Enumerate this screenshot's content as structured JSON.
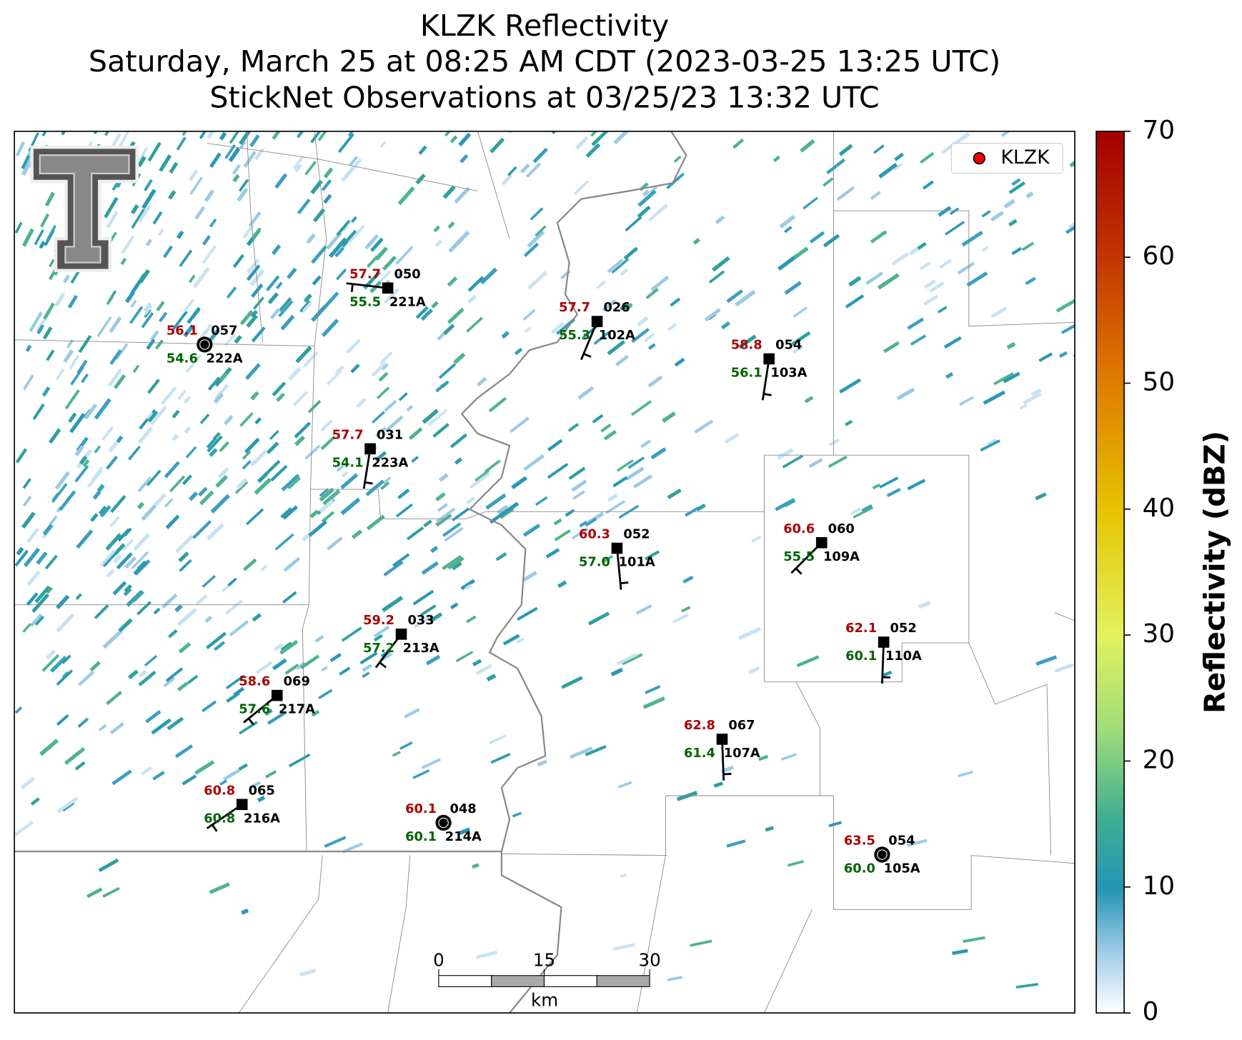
{
  "title": [
    "KLZK Reflectivity",
    "Saturday, March 25 at 08:25 AM CDT (2023-03-25 13:25 UTC)",
    "StickNet Observations at 03/25/23 13:32 UTC"
  ],
  "legend": "KLZK",
  "colorbar": {
    "label": "Reflectivity (dBZ)",
    "ticks": [
      0,
      10,
      20,
      30,
      40,
      50,
      60,
      70
    ],
    "lim": [
      0,
      70
    ]
  },
  "scale_bar": {
    "ticks": [
      0,
      15,
      30
    ],
    "unit": "km"
  },
  "stations": [
    {
      "id": "221A",
      "temperature": "57.7",
      "dewpoint": "55.5",
      "code": "050"
    },
    {
      "id": "222A",
      "temperature": "56.1",
      "dewpoint": "54.6",
      "code": "057"
    },
    {
      "id": "102A",
      "temperature": "57.7",
      "dewpoint": "55.3",
      "code": "026"
    },
    {
      "id": "103A",
      "temperature": "58.8",
      "dewpoint": "56.1",
      "code": "054"
    },
    {
      "id": "223A",
      "temperature": "57.7",
      "dewpoint": "54.1",
      "code": "031"
    },
    {
      "id": "101A",
      "temperature": "60.3",
      "dewpoint": "57.0",
      "code": "052"
    },
    {
      "id": "109A",
      "temperature": "60.6",
      "dewpoint": "55.5",
      "code": "060"
    },
    {
      "id": "213A",
      "temperature": "59.2",
      "dewpoint": "57.2",
      "code": "033"
    },
    {
      "id": "110A",
      "temperature": "62.1",
      "dewpoint": "60.1",
      "code": "052"
    },
    {
      "id": "217A",
      "temperature": "58.6",
      "dewpoint": "57.6",
      "code": "069"
    },
    {
      "id": "107A",
      "temperature": "62.8",
      "dewpoint": "61.4",
      "code": "067"
    },
    {
      "id": "216A",
      "temperature": "60.8",
      "dewpoint": "60.8",
      "code": "065"
    },
    {
      "id": "214A",
      "temperature": "60.1",
      "dewpoint": "60.1",
      "code": "048"
    },
    {
      "id": "105A",
      "temperature": "63.5",
      "dewpoint": "60.0",
      "code": "054"
    }
  ]
}
